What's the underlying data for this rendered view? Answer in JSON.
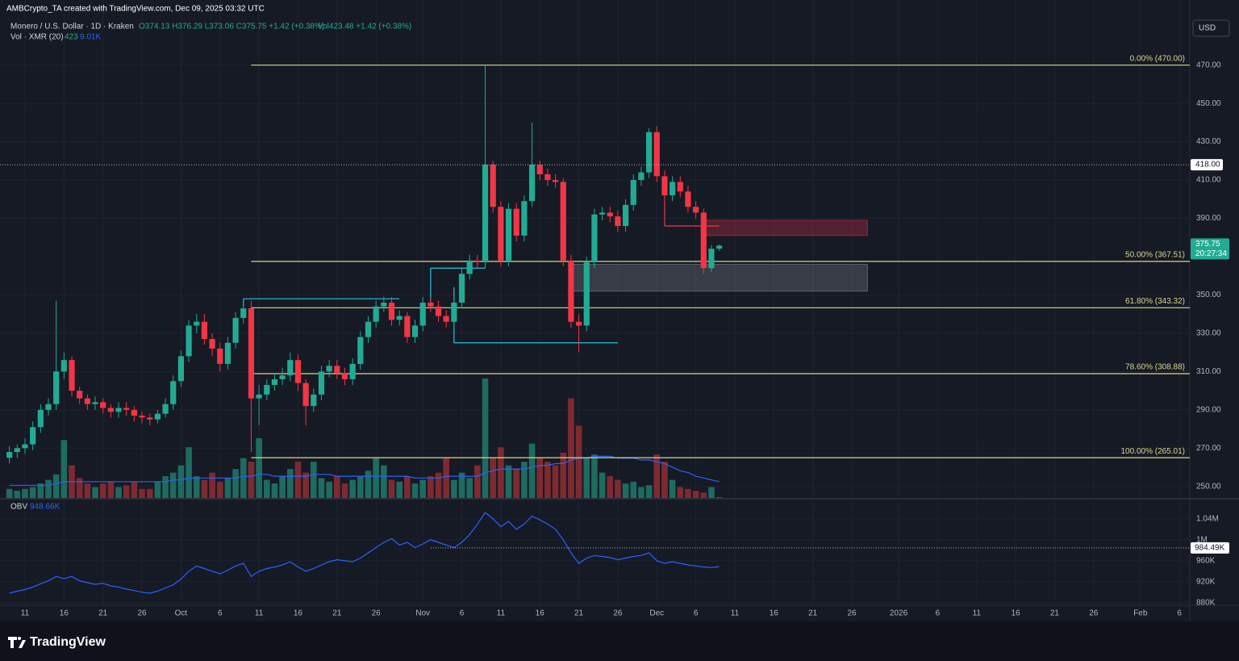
{
  "header": {
    "credit": "AMBCrypto_TA created with TradingView.com, Dec 09, 2025 03:32 UTC",
    "symbol": "Monero / U.S. Dollar · 1D · Kraken",
    "ohlc": "O374.13 H376.29 L373.06 C375.75 +1.42 (+0.38%)",
    "vol": "Vol423.48 +1.42 (+0.38%)",
    "vol_study": "Vol · XMR (20)",
    "vol_last": "423",
    "vol_ma_last": "9.01K",
    "obv_study": "OBV",
    "obv_last": "948.66K",
    "currency": "USD",
    "brand": "TradingView"
  },
  "chart_data": {
    "type": "candlestick",
    "up_color": "#22ab94",
    "down_color": "#f23645",
    "grid": true,
    "x": [
      "2025-09-09",
      "2025-09-10",
      "2025-09-11",
      "2025-09-12",
      "2025-09-13",
      "2025-09-14",
      "2025-09-15",
      "2025-09-16",
      "2025-09-17",
      "2025-09-18",
      "2025-09-19",
      "2025-09-20",
      "2025-09-21",
      "2025-09-22",
      "2025-09-23",
      "2025-09-24",
      "2025-09-25",
      "2025-09-26",
      "2025-09-27",
      "2025-09-28",
      "2025-09-29",
      "2025-09-30",
      "2025-10-01",
      "2025-10-02",
      "2025-10-03",
      "2025-10-04",
      "2025-10-05",
      "2025-10-06",
      "2025-10-07",
      "2025-10-08",
      "2025-10-09",
      "2025-10-10",
      "2025-10-11",
      "2025-10-12",
      "2025-10-13",
      "2025-10-14",
      "2025-10-15",
      "2025-10-16",
      "2025-10-17",
      "2025-10-18",
      "2025-10-19",
      "2025-10-20",
      "2025-10-21",
      "2025-10-22",
      "2025-10-23",
      "2025-10-24",
      "2025-10-25",
      "2025-10-26",
      "2025-10-27",
      "2025-10-28",
      "2025-10-29",
      "2025-10-30",
      "2025-10-31",
      "2025-11-01",
      "2025-11-02",
      "2025-11-03",
      "2025-11-04",
      "2025-11-05",
      "2025-11-06",
      "2025-11-07",
      "2025-11-08",
      "2025-11-09",
      "2025-11-10",
      "2025-11-11",
      "2025-11-12",
      "2025-11-13",
      "2025-11-14",
      "2025-11-15",
      "2025-11-16",
      "2025-11-17",
      "2025-11-18",
      "2025-11-19",
      "2025-11-20",
      "2025-11-21",
      "2025-11-22",
      "2025-11-23",
      "2025-11-24",
      "2025-11-25",
      "2025-11-26",
      "2025-11-27",
      "2025-11-28",
      "2025-11-29",
      "2025-11-30",
      "2025-12-01",
      "2025-12-02",
      "2025-12-03",
      "2025-12-04",
      "2025-12-05",
      "2025-12-06",
      "2025-12-07",
      "2025-12-08",
      "2025-12-09"
    ],
    "open": [
      265,
      268,
      270,
      272,
      281,
      290,
      293,
      310,
      316,
      300,
      296,
      293,
      294,
      291,
      289,
      291,
      290,
      287,
      286,
      285,
      288,
      293,
      305,
      318,
      334,
      336,
      327,
      322,
      314,
      325,
      338,
      343,
      296,
      298,
      303,
      306,
      308,
      316,
      304,
      292,
      298,
      310,
      313,
      309,
      306,
      314,
      328,
      336,
      344,
      346,
      337,
      339,
      328,
      334,
      346,
      344,
      339,
      336,
      346,
      361,
      368,
      367,
      418,
      396,
      368,
      395,
      381,
      399,
      418,
      413,
      410,
      409,
      368,
      336,
      334,
      367,
      392,
      393,
      391,
      386,
      397,
      410,
      414,
      435,
      412,
      402,
      409,
      404,
      396,
      393,
      364,
      374.13
    ],
    "high": [
      271,
      272,
      275,
      284,
      293,
      296,
      347,
      320,
      318,
      302,
      298,
      297,
      296,
      293,
      294,
      294,
      292,
      289,
      288,
      290,
      296,
      308,
      321,
      337,
      340,
      340,
      330,
      325,
      328,
      341,
      347,
      347,
      303,
      306,
      309,
      312,
      320,
      319,
      306,
      301,
      313,
      316,
      316,
      312,
      317,
      331,
      339,
      347,
      349,
      349,
      342,
      341,
      337,
      349,
      349,
      347,
      342,
      349,
      364,
      371,
      371,
      470,
      420,
      399,
      398,
      398,
      402,
      440,
      420,
      416,
      413,
      411,
      371,
      340,
      370,
      395,
      396,
      396,
      394,
      400,
      413,
      417,
      437,
      438,
      415,
      412,
      412,
      407,
      399,
      395,
      376,
      376.29
    ],
    "low": [
      262,
      265,
      267,
      269,
      278,
      287,
      290,
      306,
      297,
      293,
      290,
      290,
      288,
      286,
      286,
      287,
      284,
      283,
      282,
      283,
      286,
      290,
      302,
      315,
      330,
      324,
      318,
      310,
      311,
      322,
      335,
      268,
      282,
      295,
      300,
      303,
      305,
      300,
      282,
      289,
      295,
      307,
      306,
      303,
      303,
      311,
      325,
      333,
      341,
      334,
      334,
      325,
      325,
      331,
      341,
      336,
      333,
      333,
      343,
      358,
      364,
      364,
      393,
      365,
      365,
      378,
      378,
      396,
      410,
      407,
      406,
      365,
      333,
      320,
      331,
      364,
      389,
      388,
      383,
      383,
      394,
      407,
      411,
      409,
      399,
      399,
      401,
      393,
      390,
      361,
      362,
      373.06
    ],
    "close": [
      268,
      270,
      272,
      281,
      290,
      293,
      310,
      316,
      300,
      296,
      293,
      294,
      291,
      289,
      291,
      290,
      287,
      286,
      285,
      288,
      293,
      305,
      318,
      334,
      336,
      327,
      322,
      314,
      325,
      338,
      343,
      296,
      298,
      303,
      306,
      308,
      316,
      304,
      292,
      298,
      310,
      313,
      309,
      306,
      314,
      328,
      336,
      344,
      346,
      337,
      339,
      328,
      334,
      346,
      344,
      339,
      336,
      346,
      361,
      368,
      367,
      418,
      396,
      368,
      395,
      381,
      399,
      418,
      413,
      410,
      409,
      368,
      336,
      334,
      367,
      392,
      393,
      391,
      386,
      397,
      410,
      414,
      435,
      412,
      402,
      409,
      404,
      396,
      393,
      364,
      374.13,
      375.75
    ],
    "volume": [
      5000,
      4000,
      5000,
      6000,
      8000,
      10000,
      13000,
      32000,
      18000,
      11000,
      8000,
      6000,
      8000,
      9000,
      6000,
      7000,
      9000,
      5000,
      5000,
      9000,
      12000,
      14000,
      18000,
      28000,
      12000,
      10000,
      14000,
      9000,
      11000,
      16000,
      22000,
      20000,
      33000,
      10000,
      8000,
      12000,
      16000,
      20000,
      14000,
      20000,
      11000,
      9000,
      12000,
      8000,
      10000,
      12000,
      15000,
      22000,
      18000,
      10000,
      9000,
      12000,
      8000,
      10000,
      12000,
      14000,
      22000,
      10000,
      14000,
      11000,
      18000,
      66000,
      22000,
      28000,
      18000,
      16000,
      20000,
      30000,
      22000,
      20000,
      18000,
      25000,
      55000,
      40000,
      22000,
      24000,
      14000,
      12000,
      10000,
      8000,
      9000,
      6000,
      7000,
      24000,
      20000,
      10000,
      6000,
      5000,
      4000,
      3000,
      6000,
      423
    ],
    "volume_ma": [
      7000,
      7000,
      7000,
      7000,
      7000,
      7000,
      8000,
      9000,
      9000,
      9000,
      9000,
      9000,
      9000,
      9000,
      9000,
      9000,
      9000,
      9000,
      9000,
      9000,
      9000,
      10000,
      10000,
      11000,
      11000,
      11000,
      11000,
      11000,
      11000,
      11000,
      12000,
      12000,
      13000,
      13000,
      12000,
      12000,
      12000,
      12000,
      12000,
      13000,
      13000,
      13000,
      12000,
      12000,
      12000,
      12000,
      12000,
      12000,
      12000,
      12000,
      12000,
      12000,
      11000,
      11000,
      11000,
      11000,
      12000,
      12000,
      12000,
      12000,
      12000,
      14000,
      15000,
      16000,
      16000,
      16000,
      16000,
      17000,
      18000,
      18000,
      19000,
      19000,
      21000,
      22000,
      22000,
      23000,
      23000,
      23000,
      22000,
      22000,
      22000,
      21000,
      21000,
      20000,
      19000,
      17000,
      15000,
      14000,
      12000,
      11000,
      10000,
      9010
    ],
    "volume_color_up": "#1e6b60",
    "volume_color_down": "#7e2a31",
    "volume_ma_color": "#2962ff",
    "volume_ylim": [
      0,
      275000
    ],
    "ylim": [
      244,
      504
    ],
    "yticks": [
      {
        "value": 470,
        "label": "470.00"
      },
      {
        "value": 450,
        "label": "450.00"
      },
      {
        "value": 430,
        "label": "430.00"
      },
      {
        "value": 410,
        "label": "410.00"
      },
      {
        "value": 390,
        "label": "390.00"
      },
      {
        "value": 350,
        "label": "350.00"
      },
      {
        "value": 330,
        "label": "330.00"
      },
      {
        "value": 310,
        "label": "310.00"
      },
      {
        "value": 290,
        "label": "290.00"
      },
      {
        "value": 270,
        "label": "270.00"
      },
      {
        "value": 250,
        "label": "250.00"
      }
    ],
    "xticks": [
      {
        "value": "2025-09-11",
        "label": "11"
      },
      {
        "value": "2025-09-16",
        "label": "16"
      },
      {
        "value": "2025-09-21",
        "label": "21"
      },
      {
        "value": "2025-09-26",
        "label": "26"
      },
      {
        "value": "2025-10-01",
        "label": "Oct"
      },
      {
        "value": "2025-10-06",
        "label": "6"
      },
      {
        "value": "2025-10-11",
        "label": "11"
      },
      {
        "value": "2025-10-16",
        "label": "16"
      },
      {
        "value": "2025-10-21",
        "label": "21"
      },
      {
        "value": "2025-10-26",
        "label": "26"
      },
      {
        "value": "2025-11-01",
        "label": "Nov"
      },
      {
        "value": "2025-11-06",
        "label": "6"
      },
      {
        "value": "2025-11-11",
        "label": "11"
      },
      {
        "value": "2025-11-16",
        "label": "16"
      },
      {
        "value": "2025-11-21",
        "label": "21"
      },
      {
        "value": "2025-11-26",
        "label": "26"
      },
      {
        "value": "2025-12-01",
        "label": "Dec"
      },
      {
        "value": "2025-12-06",
        "label": "6"
      },
      {
        "value": "2025-12-11",
        "label": "11"
      },
      {
        "value": "2025-12-16",
        "label": "16"
      },
      {
        "value": "2025-12-21",
        "label": "21"
      },
      {
        "value": "2025-12-26",
        "label": "26"
      },
      {
        "value": "2026-01-01",
        "label": "2026"
      },
      {
        "value": "2026-01-06",
        "label": "6"
      },
      {
        "value": "2026-01-11",
        "label": "11"
      },
      {
        "value": "2026-01-16",
        "label": "16"
      },
      {
        "value": "2026-01-21",
        "label": "21"
      },
      {
        "value": "2026-01-26",
        "label": "26"
      },
      {
        "value": "2026-02-01",
        "label": "Feb"
      },
      {
        "value": "2026-02-06",
        "label": "6"
      }
    ],
    "fib_levels": [
      {
        "label": "0.00% (470.00)",
        "value": 470
      },
      {
        "label": "50.00% (367.51)",
        "value": 367.51
      },
      {
        "label": "61.80% (343.32)",
        "value": 343.32
      },
      {
        "label": "78.60% (308.88)",
        "value": 308.88
      },
      {
        "label": "100.00% (265.01)",
        "value": 265.01
      }
    ],
    "fib_from": "2025-10-10",
    "fib_color": "#d8d68a",
    "zones": [
      {
        "from": "2025-12-07",
        "to": "2025-12-28",
        "top": 389,
        "bottom": 381,
        "color": "#f23645"
      },
      {
        "from": "2025-11-20",
        "to": "2025-12-28",
        "top": 366,
        "bottom": 352,
        "color": "#9598a1"
      }
    ],
    "lines": [
      {
        "from": [
          "2025-10-09",
          348
        ],
        "to": [
          "2025-10-29",
          348
        ],
        "color": "#26c6da"
      },
      {
        "from": [
          "2025-10-09",
          348
        ],
        "to": [
          "2025-10-09",
          344
        ],
        "color": "#26c6da"
      },
      {
        "from": [
          "2025-11-02",
          364
        ],
        "to": [
          "2025-11-09",
          364
        ],
        "color": "#26c6da"
      },
      {
        "from": [
          "2025-11-02",
          364
        ],
        "to": [
          "2025-11-02",
          344
        ],
        "color": "#26c6da"
      },
      {
        "from": [
          "2025-11-05",
          354
        ],
        "to": [
          "2025-11-05",
          325
        ],
        "color": "#26c6da"
      },
      {
        "from": [
          "2025-11-05",
          325
        ],
        "to": [
          "2025-11-26",
          325
        ],
        "color": "#26c6da"
      },
      {
        "from": [
          "2025-12-02",
          399
        ],
        "to": [
          "2025-12-02",
          386
        ],
        "color": "#f23645"
      },
      {
        "from": [
          "2025-12-02",
          386
        ],
        "to": [
          "2025-12-09",
          386
        ],
        "color": "#f23645"
      }
    ],
    "price_markers": [
      {
        "value": 418,
        "label": "418.00",
        "line": "full"
      },
      {
        "value": 375.75,
        "label": "375.75",
        "sub": "20:27:34",
        "line": "none"
      }
    ],
    "obv": {
      "color": "#2962ff",
      "ylim": [
        875000,
        1075000
      ],
      "values": [
        898000,
        902000,
        905000,
        910000,
        916000,
        922000,
        930000,
        926000,
        930000,
        922000,
        918000,
        915000,
        917000,
        912000,
        910000,
        906000,
        903000,
        900000,
        898000,
        902000,
        908000,
        914000,
        925000,
        940000,
        950000,
        945000,
        940000,
        935000,
        942000,
        950000,
        955000,
        930000,
        940000,
        945000,
        948000,
        952000,
        958000,
        948000,
        940000,
        945000,
        952000,
        958000,
        962000,
        960000,
        958000,
        965000,
        975000,
        985000,
        995000,
        1002000,
        990000,
        995000,
        985000,
        992000,
        1000000,
        995000,
        990000,
        985000,
        995000,
        1010000,
        1030000,
        1052000,
        1040000,
        1025000,
        1035000,
        1020000,
        1030000,
        1045000,
        1038000,
        1030000,
        1020000,
        1000000,
        975000,
        955000,
        965000,
        970000,
        968000,
        966000,
        962000,
        965000,
        968000,
        970000,
        975000,
        960000,
        955000,
        958000,
        955000,
        952000,
        950000,
        948000,
        947000,
        948660
      ],
      "yticks": [
        {
          "value": 1040000,
          "label": "1.04M"
        },
        {
          "value": 1000000,
          "label": "1M"
        },
        {
          "value": 960000,
          "label": "960K"
        },
        {
          "value": 920000,
          "label": "920K"
        },
        {
          "value": 880000,
          "label": "880K"
        }
      ],
      "marker": {
        "value": 984490,
        "label": "984.49K",
        "from": "2025-11-02"
      }
    }
  }
}
